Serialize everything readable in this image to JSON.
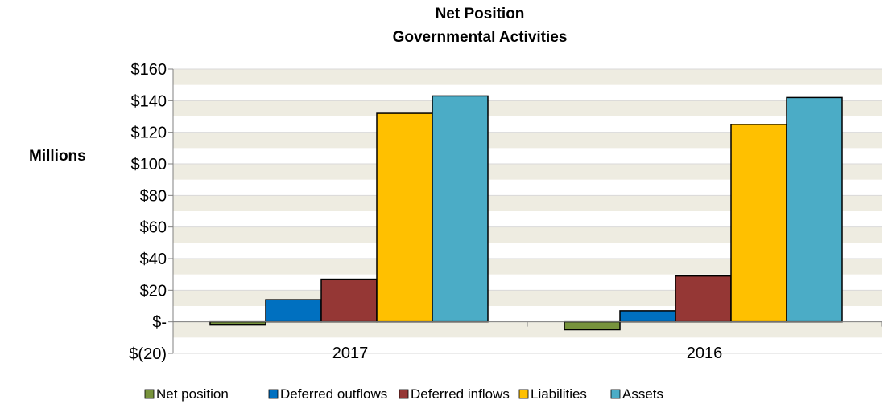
{
  "chart_data": {
    "type": "bar",
    "title": "Net Position",
    "subtitle": "Governmental Activities",
    "ylabel": "Millions",
    "xlabel": "",
    "categories": [
      "2017",
      "2016"
    ],
    "ylim": [
      -20,
      160
    ],
    "yticks": [
      {
        "value": 160,
        "label": "$160"
      },
      {
        "value": 140,
        "label": "$140"
      },
      {
        "value": 120,
        "label": "$120"
      },
      {
        "value": 100,
        "label": "$100"
      },
      {
        "value": 80,
        "label": "$80"
      },
      {
        "value": 60,
        "label": "$60"
      },
      {
        "value": 40,
        "label": "$40"
      },
      {
        "value": 20,
        "label": "$20"
      },
      {
        "value": 0,
        "label": "$-"
      },
      {
        "value": -20,
        "label": "$(20)"
      }
    ],
    "series": [
      {
        "name": "Net position",
        "color": "#77933C",
        "values": [
          -2,
          -5
        ]
      },
      {
        "name": "Deferred outflows",
        "color": "#0070C0",
        "values": [
          14,
          7
        ]
      },
      {
        "name": "Deferred inflows",
        "color": "#953735",
        "values": [
          27,
          29
        ]
      },
      {
        "name": "Liabilities",
        "color": "#FFC000",
        "values": [
          132,
          125
        ]
      },
      {
        "name": "Assets",
        "color": "#4BACC6",
        "values": [
          143,
          142
        ]
      }
    ],
    "grid": true,
    "band_color": "#EEECE1",
    "legend_position": "bottom"
  }
}
